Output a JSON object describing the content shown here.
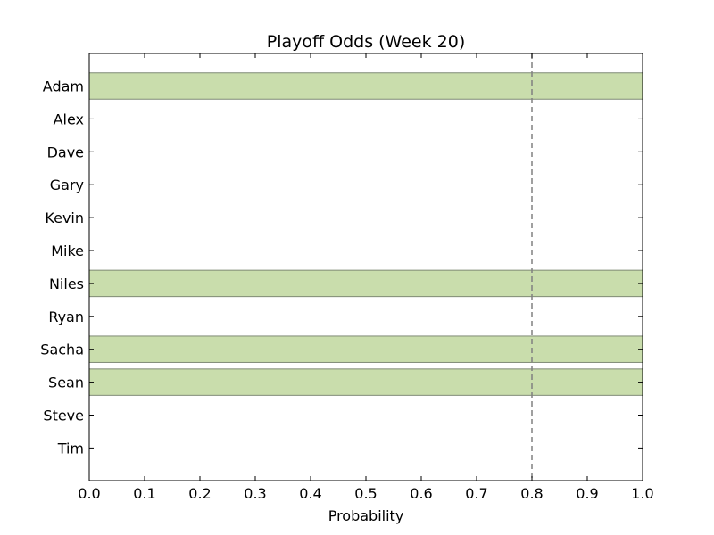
{
  "chart_data": {
    "type": "bar",
    "orientation": "horizontal",
    "title": "Playoff Odds (Week 20)",
    "xlabel": "Probability",
    "ylabel": "",
    "xlim": [
      0.0,
      1.0
    ],
    "xticks": [
      "0.0",
      "0.1",
      "0.2",
      "0.3",
      "0.4",
      "0.5",
      "0.6",
      "0.7",
      "0.8",
      "0.9",
      "1.0"
    ],
    "categories": [
      "Adam",
      "Alex",
      "Dave",
      "Gary",
      "Kevin",
      "Mike",
      "Niles",
      "Ryan",
      "Sacha",
      "Sean",
      "Steve",
      "Tim"
    ],
    "values": [
      1.0,
      0.0,
      0.0,
      0.0,
      0.0,
      0.0,
      1.0,
      0.0,
      1.0,
      1.0,
      0.0,
      0.0
    ],
    "reference_line": {
      "x": 0.8,
      "style": "dashed"
    },
    "grid": false,
    "colors": {
      "bar_fill": "#c9ddac",
      "bar_edge": "#7f8a75",
      "reference_line": "#808080",
      "axis": "#000000"
    }
  }
}
